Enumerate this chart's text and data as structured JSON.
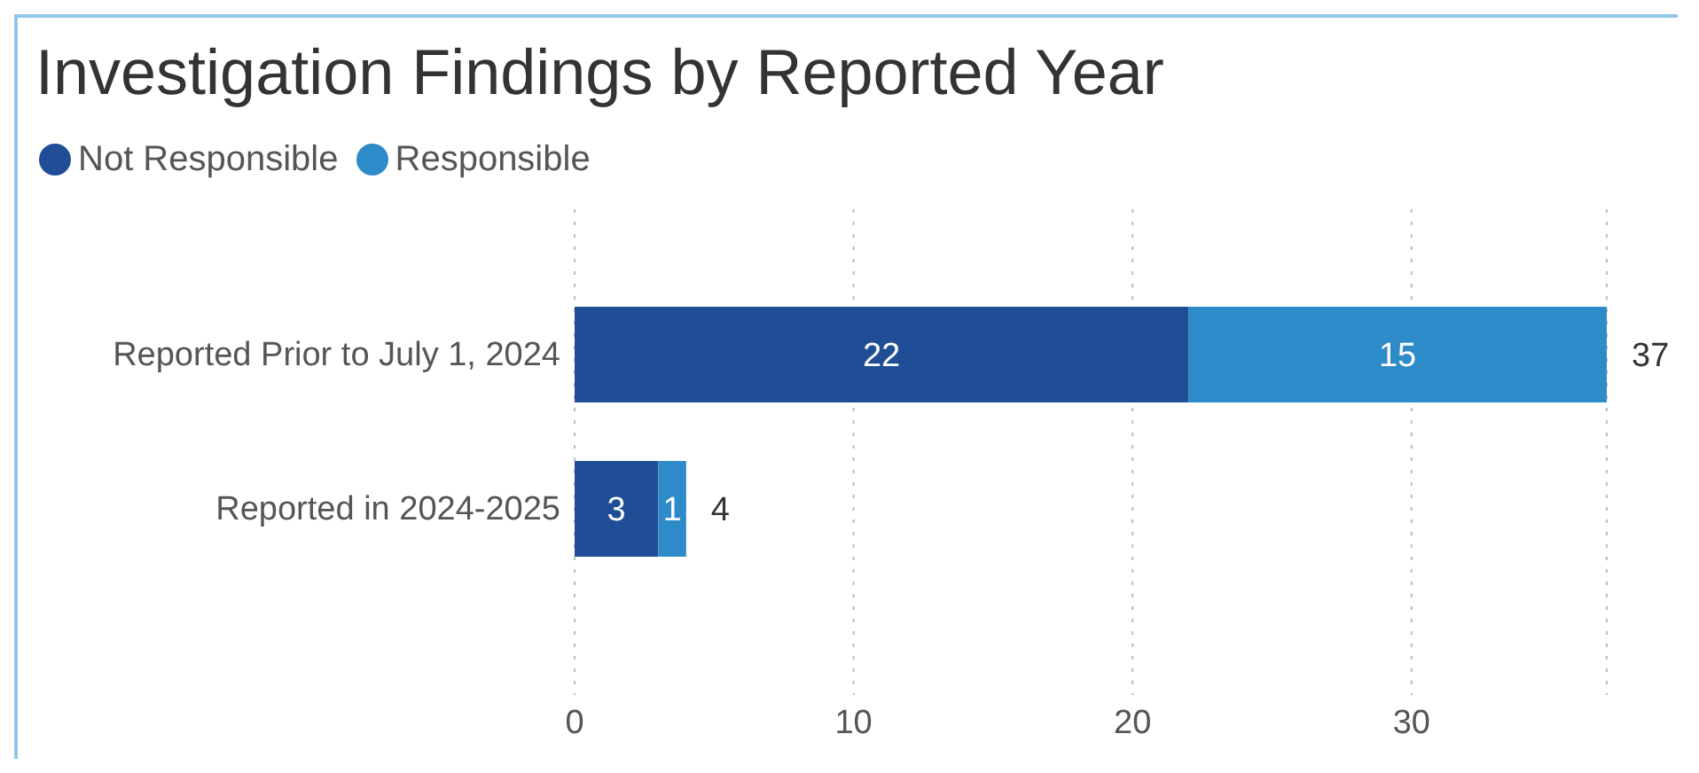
{
  "chart_data": {
    "type": "bar",
    "title": "Investigation Findings by Reported Year",
    "orientation": "horizontal",
    "stacked": true,
    "categories": [
      "Reported Prior to July 1, 2024",
      "Reported in 2024-2025"
    ],
    "series": [
      {
        "name": "Not Responsible",
        "color": "#1f4e96",
        "values": [
          22,
          3
        ]
      },
      {
        "name": "Responsible",
        "color": "#2e8bc9",
        "values": [
          15,
          1
        ]
      }
    ],
    "totals": [
      "37",
      "4"
    ],
    "data_labels": true,
    "xlim": [
      0,
      37
    ],
    "xticks": [
      0,
      10,
      20,
      30
    ],
    "grid": "x",
    "legend": "top left"
  }
}
